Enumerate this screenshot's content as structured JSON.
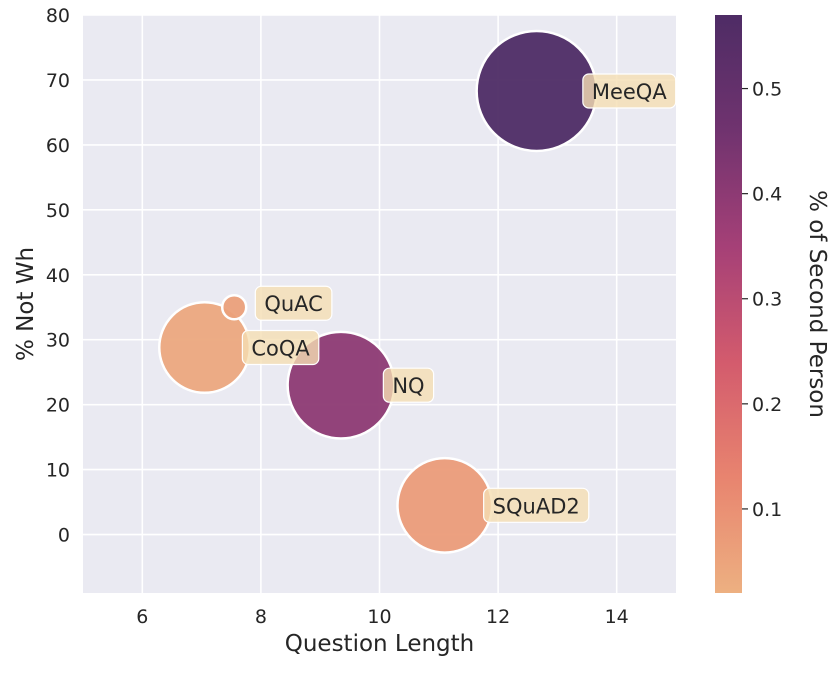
{
  "chart_data": {
    "type": "scatter",
    "xlabel": "Question Length",
    "ylabel": "% Not Wh",
    "colorbar_label": "% of Second Person",
    "xlim": [
      5,
      15
    ],
    "ylim": [
      -9,
      80
    ],
    "x_ticks": [
      6,
      8,
      10,
      12,
      14
    ],
    "y_ticks": [
      0,
      10,
      20,
      30,
      40,
      50,
      60,
      70,
      80
    ],
    "colorbar_range": [
      0.02,
      0.57
    ],
    "colorbar_ticks": [
      0.1,
      0.2,
      0.3,
      0.4,
      0.5
    ],
    "grid": true,
    "background": "#eaeaf2",
    "colormap": [
      "#edb081",
      "#e8846f",
      "#d35b6d",
      "#a54077",
      "#70336f",
      "#4e2c65"
    ],
    "points": [
      {
        "label": "MeeQA",
        "x": 12.65,
        "y": 68.3,
        "size": 1,
        "color_value": 0.57
      },
      {
        "label": "QuAC",
        "x": 7.55,
        "y": 35.0,
        "size": 0.04,
        "color_value": 0.06
      },
      {
        "label": "CoQA",
        "x": 7.05,
        "y": 28.8,
        "size": 0.57,
        "color_value": 0.04
      },
      {
        "label": "NQ",
        "x": 9.35,
        "y": 23.0,
        "size": 0.79,
        "color_value": 0.4
      },
      {
        "label": "SQuAD2",
        "x": 11.1,
        "y": 4.5,
        "size": 0.62,
        "color_value": 0.07
      }
    ]
  }
}
